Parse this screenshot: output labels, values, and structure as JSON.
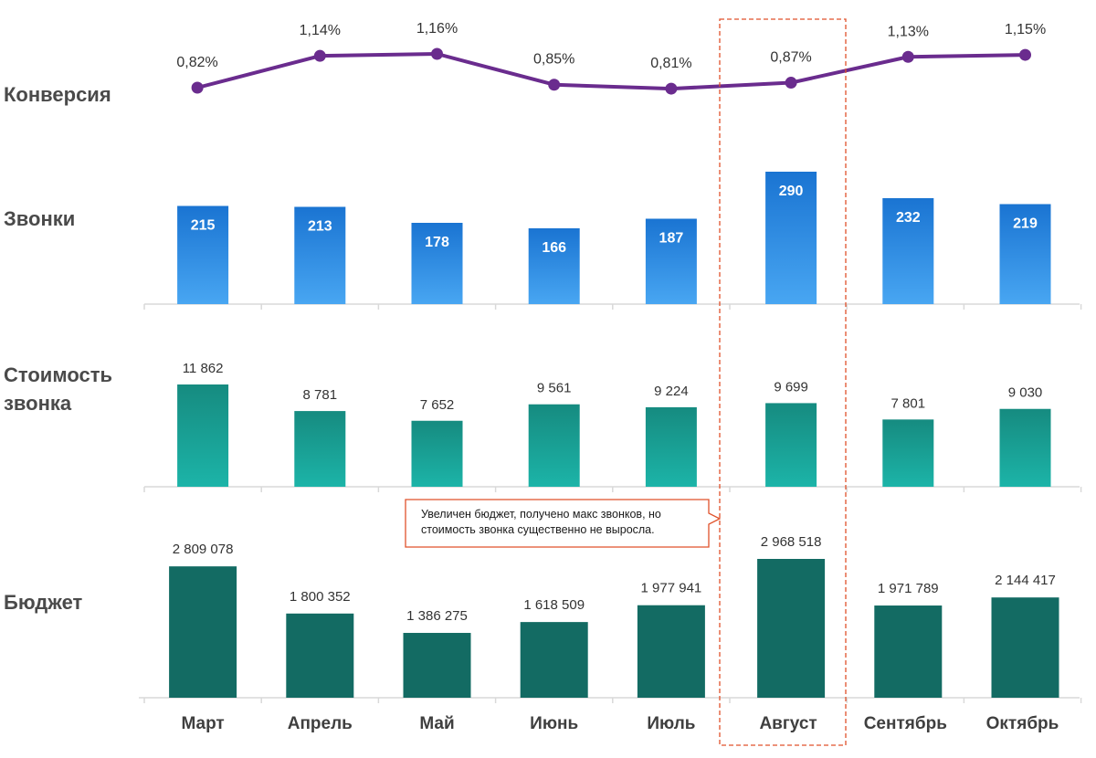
{
  "chart_data": {
    "type": "bar",
    "categories": [
      "Март",
      "Апрель",
      "Май",
      "Июнь",
      "Июль",
      "Август",
      "Сентябрь",
      "Октябрь"
    ],
    "highlight_category": "Август",
    "panels": [
      {
        "id": "conversion",
        "type": "line",
        "title": [
          "Конверсия"
        ],
        "values": [
          0.82,
          1.14,
          1.16,
          0.85,
          0.81,
          0.87,
          1.13,
          1.15
        ],
        "labels": [
          "0,82%",
          "1,14%",
          "1,16%",
          "0,85%",
          "0,81%",
          "0,87%",
          "1,13%",
          "1,15%"
        ],
        "ylim": [
          0.6,
          1.3
        ],
        "color": "#6a2c8e"
      },
      {
        "id": "calls",
        "type": "bar",
        "title": [
          "Звонки"
        ],
        "values": [
          215,
          213,
          178,
          166,
          187,
          290,
          232,
          219
        ],
        "labels": [
          "215",
          "213",
          "178",
          "166",
          "187",
          "290",
          "232",
          "219"
        ],
        "label_position": "inside-top",
        "ylim": [
          0,
          290
        ],
        "color_top": "#1a74d2",
        "color_bottom": "#48a6f2"
      },
      {
        "id": "call_cost",
        "type": "bar",
        "title": [
          "Стоимость",
          "звонка"
        ],
        "values": [
          11862,
          8781,
          7652,
          9561,
          9224,
          9699,
          7801,
          9030
        ],
        "labels": [
          "11 862",
          "8 781",
          "7 652",
          "9 561",
          "9 224",
          "9 699",
          "7 801",
          "9 030"
        ],
        "label_position": "above",
        "ylim": [
          0,
          11862
        ],
        "color_top": "#168b80",
        "color_bottom": "#1cb4a8"
      },
      {
        "id": "budget",
        "type": "bar",
        "title": [
          "Бюджет"
        ],
        "values": [
          2809078,
          1800352,
          1386275,
          1618509,
          1977941,
          2968518,
          1971789,
          2144417
        ],
        "labels": [
          "2 809 078",
          "1 800 352",
          "1 386 275",
          "1 618 509",
          "1 977 941",
          "2 968 518",
          "1 971 789",
          "2 144 417"
        ],
        "label_position": "above",
        "ylim": [
          0,
          2968518
        ],
        "color": "#136b63"
      }
    ],
    "annotation": {
      "text": [
        "Увеличен бюджет, получено макс звонков, но",
        "стоимость звонка существенно не выросла."
      ],
      "target": "Август",
      "border_color": "#e0522b"
    },
    "colors": {
      "axis": "#d9d9d9",
      "highlight_frame": "#e0522b"
    }
  }
}
